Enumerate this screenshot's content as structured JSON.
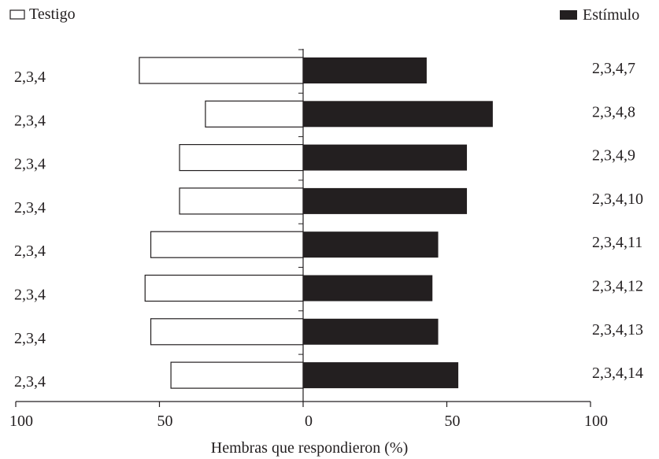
{
  "chart_data": {
    "type": "bar",
    "orientation": "horizontal-diverging",
    "xlabel": "Hembras que respondieron (%)",
    "xticks": [
      100,
      50,
      0,
      50,
      100
    ],
    "xlim": [
      -100,
      100
    ],
    "legend_placement": "top",
    "grid": false,
    "series": [
      {
        "name": "Testigo",
        "color": "#ffffff",
        "side": "left",
        "categories": [
          "2,3,4",
          "2,3,4",
          "2,3,4",
          "2,3,4",
          "2,3,4",
          "2,3,4",
          "2,3,4",
          "2,3,4"
        ],
        "values": [
          57,
          34,
          43,
          43,
          53,
          55,
          53,
          46
        ]
      },
      {
        "name": "Estímulo",
        "color": "#231f20",
        "side": "right",
        "categories": [
          "2,3,4,7",
          "2,3,4,8",
          "2,3,4,9",
          "2,3,4,10",
          "2,3,4,11",
          "2,3,4,12",
          "2,3,4,13",
          "2,3,4,14"
        ],
        "values": [
          43,
          66,
          57,
          57,
          47,
          45,
          47,
          54
        ]
      }
    ]
  }
}
